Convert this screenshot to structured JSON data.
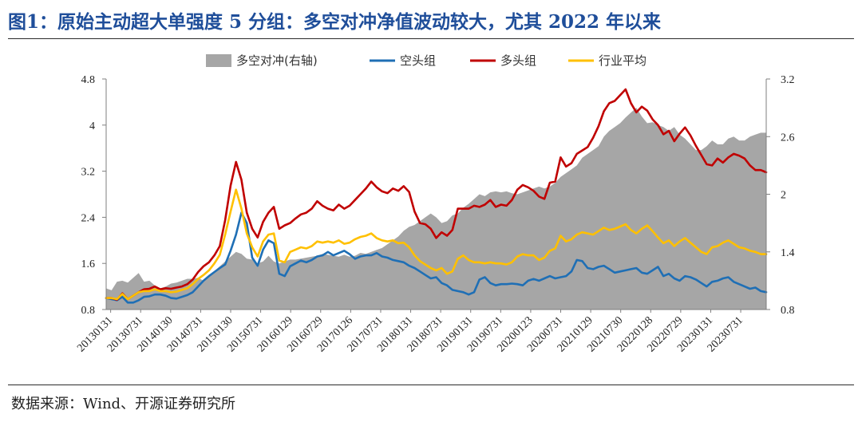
{
  "figure": {
    "title": "图1：原始主动超大单强度 5 分组：多空对冲净值波动较大，尤其 2022 年以来",
    "source": "数据来源：Wind、开源证券研究所"
  },
  "colors": {
    "title": "#1f4e9a",
    "hedge_area": "#a6a6a6",
    "short_line": "#1f6fb5",
    "long_line": "#c00000",
    "avg_line": "#ffc000",
    "axis": "#7f7f7f"
  },
  "chart_data": {
    "type": "line",
    "legend_position": "top",
    "grid": false,
    "x_tick_labels": [
      "20130131",
      "20130731",
      "20140130",
      "20140731",
      "20150130",
      "20150731",
      "20160129",
      "20160729",
      "20170126",
      "20170731",
      "20180131",
      "20180731",
      "20190131",
      "20190731",
      "20200123",
      "20200731",
      "20210129",
      "20210730",
      "20220128",
      "20220729",
      "20230131",
      "20230731"
    ],
    "y_left": {
      "ylim": [
        0.8,
        4.8
      ],
      "ticks": [
        "0.8",
        "1.6",
        "2.4",
        "3.2",
        "4",
        "4.8"
      ]
    },
    "y_right": {
      "ylim": [
        0.8,
        3.2
      ],
      "ticks": [
        "0.8",
        "1.4",
        "2",
        "2.6",
        "3.2"
      ]
    },
    "series": [
      {
        "name": "多空对冲(右轴)",
        "type": "area",
        "axis": "right",
        "color": "#a6a6a6",
        "values": [
          1.02,
          1.0,
          1.09,
          1.1,
          1.08,
          1.13,
          1.18,
          1.09,
          1.1,
          1.05,
          1.02,
          1.04,
          1.07,
          1.08,
          1.1,
          1.12,
          1.12,
          1.13,
          1.1,
          1.14,
          1.2,
          1.25,
          1.3,
          1.35,
          1.4,
          1.38,
          1.33,
          1.32,
          1.28,
          1.3,
          1.36,
          1.3,
          1.28,
          1.3,
          1.32,
          1.32,
          1.33,
          1.34,
          1.35,
          1.36,
          1.38,
          1.37,
          1.36,
          1.35,
          1.37,
          1.35,
          1.36,
          1.39,
          1.38,
          1.4,
          1.42,
          1.44,
          1.48,
          1.52,
          1.56,
          1.62,
          1.66,
          1.68,
          1.72,
          1.76,
          1.8,
          1.76,
          1.7,
          1.72,
          1.78,
          1.8,
          1.86,
          1.9,
          1.95,
          2.0,
          1.98,
          2.02,
          2.03,
          2.02,
          2.03,
          2.01,
          2.0,
          2.02,
          2.04,
          2.06,
          2.08,
          2.06,
          2.08,
          2.12,
          2.18,
          2.22,
          2.26,
          2.3,
          2.38,
          2.42,
          2.46,
          2.5,
          2.6,
          2.66,
          2.7,
          2.74,
          2.8,
          2.85,
          2.9,
          2.81,
          2.74,
          2.75,
          2.72,
          2.7,
          2.66,
          2.7,
          2.62,
          2.58,
          2.52,
          2.46,
          2.46,
          2.5,
          2.56,
          2.52,
          2.52,
          2.58,
          2.6,
          2.56,
          2.56,
          2.6,
          2.62,
          2.64,
          2.64
        ]
      },
      {
        "name": "空头组",
        "type": "line",
        "axis": "left",
        "color": "#1f6fb5",
        "values": [
          1.0,
          0.98,
          0.96,
          1.02,
          0.92,
          0.92,
          0.96,
          1.02,
          1.03,
          1.06,
          1.06,
          1.04,
          1.0,
          0.99,
          1.02,
          1.05,
          1.1,
          1.2,
          1.3,
          1.38,
          1.45,
          1.52,
          1.58,
          1.82,
          2.1,
          2.48,
          2.3,
          1.7,
          1.56,
          1.84,
          2.0,
          1.95,
          1.42,
          1.38,
          1.55,
          1.6,
          1.65,
          1.62,
          1.66,
          1.72,
          1.74,
          1.8,
          1.74,
          1.78,
          1.82,
          1.76,
          1.68,
          1.72,
          1.74,
          1.74,
          1.78,
          1.72,
          1.7,
          1.66,
          1.64,
          1.62,
          1.56,
          1.52,
          1.46,
          1.4,
          1.34,
          1.36,
          1.26,
          1.22,
          1.14,
          1.12,
          1.1,
          1.06,
          1.1,
          1.32,
          1.36,
          1.26,
          1.22,
          1.24,
          1.24,
          1.25,
          1.24,
          1.22,
          1.3,
          1.33,
          1.3,
          1.34,
          1.38,
          1.34,
          1.36,
          1.38,
          1.46,
          1.66,
          1.64,
          1.52,
          1.5,
          1.54,
          1.56,
          1.5,
          1.44,
          1.46,
          1.48,
          1.5,
          1.52,
          1.44,
          1.42,
          1.48,
          1.54,
          1.38,
          1.42,
          1.34,
          1.3,
          1.38,
          1.36,
          1.32,
          1.26,
          1.2,
          1.28,
          1.3,
          1.34,
          1.36,
          1.28,
          1.24,
          1.2,
          1.16,
          1.18,
          1.12,
          1.1
        ]
      },
      {
        "name": "多头组",
        "type": "line",
        "axis": "left",
        "color": "#c00000",
        "values": [
          1.0,
          1.0,
          0.97,
          1.08,
          0.98,
          1.04,
          1.1,
          1.15,
          1.16,
          1.2,
          1.15,
          1.17,
          1.16,
          1.18,
          1.2,
          1.24,
          1.32,
          1.45,
          1.55,
          1.62,
          1.74,
          1.9,
          2.35,
          2.95,
          3.36,
          3.05,
          2.48,
          2.2,
          2.05,
          2.32,
          2.48,
          2.58,
          2.2,
          2.26,
          2.3,
          2.38,
          2.45,
          2.48,
          2.55,
          2.68,
          2.6,
          2.55,
          2.52,
          2.62,
          2.55,
          2.6,
          2.7,
          2.8,
          2.9,
          3.02,
          2.92,
          2.85,
          2.82,
          2.9,
          2.86,
          2.94,
          2.84,
          2.5,
          2.3,
          2.28,
          2.2,
          2.04,
          2.14,
          2.08,
          2.18,
          2.55,
          2.55,
          2.55,
          2.6,
          2.58,
          2.62,
          2.7,
          2.58,
          2.62,
          2.6,
          2.7,
          2.88,
          2.96,
          2.92,
          2.86,
          2.76,
          2.72,
          3.0,
          3.02,
          3.44,
          3.28,
          3.34,
          3.5,
          3.56,
          3.62,
          3.78,
          3.98,
          4.24,
          4.38,
          4.42,
          4.52,
          4.62,
          4.38,
          4.22,
          4.32,
          4.25,
          4.1,
          4.0,
          3.84,
          3.9,
          3.72,
          3.85,
          3.96,
          3.82,
          3.64,
          3.48,
          3.32,
          3.3,
          3.42,
          3.35,
          3.44,
          3.5,
          3.47,
          3.42,
          3.3,
          3.22,
          3.22,
          3.18
        ]
      },
      {
        "name": "行业平均",
        "type": "line",
        "axis": "left",
        "color": "#ffc000",
        "values": [
          1.0,
          1.0,
          0.98,
          1.07,
          0.98,
          1.04,
          1.1,
          1.12,
          1.12,
          1.15,
          1.12,
          1.12,
          1.1,
          1.11,
          1.14,
          1.17,
          1.24,
          1.33,
          1.4,
          1.48,
          1.6,
          1.75,
          2.1,
          2.5,
          2.88,
          2.55,
          2.12,
          1.88,
          1.72,
          1.98,
          2.1,
          2.12,
          1.65,
          1.62,
          1.8,
          1.84,
          1.88,
          1.86,
          1.9,
          1.98,
          1.96,
          1.98,
          1.96,
          2.0,
          1.94,
          1.96,
          2.02,
          2.06,
          2.08,
          2.12,
          2.04,
          2.0,
          1.98,
          2.0,
          1.95,
          1.96,
          1.88,
          1.74,
          1.64,
          1.58,
          1.52,
          1.48,
          1.52,
          1.42,
          1.46,
          1.68,
          1.74,
          1.66,
          1.62,
          1.62,
          1.6,
          1.62,
          1.6,
          1.6,
          1.58,
          1.62,
          1.72,
          1.76,
          1.74,
          1.74,
          1.66,
          1.7,
          1.82,
          1.86,
          2.08,
          1.98,
          2.02,
          2.1,
          2.14,
          2.12,
          2.1,
          2.16,
          2.22,
          2.18,
          2.2,
          2.24,
          2.28,
          2.18,
          2.12,
          2.2,
          2.26,
          2.16,
          2.05,
          1.95,
          2.0,
          1.9,
          1.98,
          2.04,
          1.96,
          1.88,
          1.8,
          1.76,
          1.88,
          1.9,
          1.96,
          2.0,
          1.94,
          1.88,
          1.86,
          1.82,
          1.8,
          1.76,
          1.76
        ]
      }
    ]
  }
}
